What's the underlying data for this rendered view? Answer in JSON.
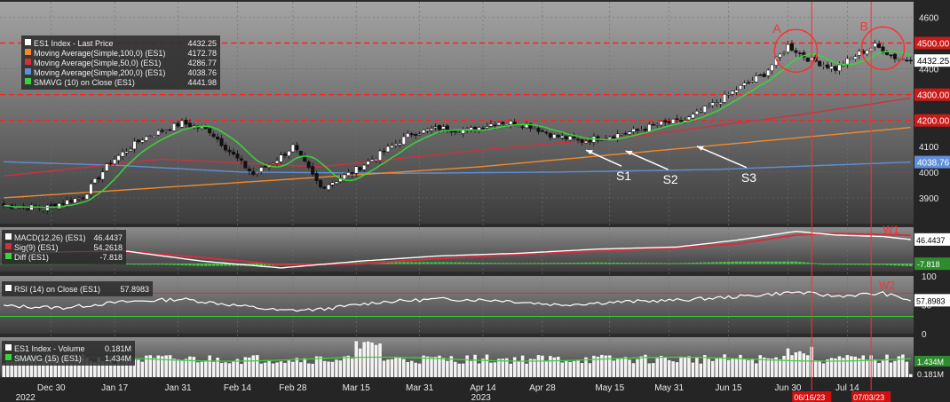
{
  "colors": {
    "panel_top": "#9a9a9a",
    "panel_bottom": "#3a3a3a",
    "bg": "#2b2b2b",
    "ma100": "#f08a2e",
    "ma50": "#d03040",
    "ma200": "#5f8fd8",
    "smavg10": "#3ad43a",
    "level": "#ff2020",
    "axis_text": "#e8e8e8",
    "price_tag": "#ffffff",
    "annot": "#ff3030"
  },
  "chart_data": [
    {
      "type": "candlestick",
      "panel": "price",
      "ylim": [
        3800,
        4660
      ],
      "yticks": [
        "4600",
        "4500",
        "4400",
        "4300",
        "4200",
        "4100",
        "4000",
        "3900"
      ],
      "legend": [
        {
          "label": "ES1 Index - Last Price",
          "value": "4432.25",
          "color": "#ffffff"
        },
        {
          "label": "Moving Average(Simple,100,0) (ES1)",
          "value": "4172.78",
          "color": "#f08a2e"
        },
        {
          "label": "Moving Average(Simple,50,0) (ES1)",
          "value": "4286.77",
          "color": "#d03040"
        },
        {
          "label": "Moving Average(Simple,200,0) (ES1)",
          "value": "4038.76",
          "color": "#5f8fd8"
        },
        {
          "label": "SMAVG (10)  on Close (ES1)",
          "value": "4441.98",
          "color": "#3ad43a"
        }
      ],
      "right_tags": [
        {
          "value": 4500,
          "text": "4500.00",
          "style": "level"
        },
        {
          "value": 4432.25,
          "text": "4432.25",
          "style": "price"
        },
        {
          "value": 4300,
          "text": "4300.00",
          "style": "level"
        },
        {
          "value": 4200,
          "text": "4200.00",
          "style": "level"
        },
        {
          "value": 4038.76,
          "text": "4038.76",
          "style": "ma200"
        }
      ],
      "levels": [
        4500,
        4300,
        4200
      ],
      "close_anchors": [
        [
          0,
          3870
        ],
        [
          10,
          3860
        ],
        [
          20,
          3905
        ],
        [
          27,
          4040
        ],
        [
          35,
          4130
        ],
        [
          45,
          4190
        ],
        [
          52,
          4160
        ],
        [
          57,
          4080
        ],
        [
          63,
          3990
        ],
        [
          70,
          4060
        ],
        [
          73,
          4100
        ],
        [
          80,
          3940
        ],
        [
          88,
          4000
        ],
        [
          95,
          4070
        ],
        [
          103,
          4150
        ],
        [
          110,
          4170
        ],
        [
          117,
          4160
        ],
        [
          125,
          4195
        ],
        [
          132,
          4185
        ],
        [
          139,
          4140
        ],
        [
          146,
          4120
        ],
        [
          153,
          4140
        ],
        [
          160,
          4160
        ],
        [
          165,
          4185
        ],
        [
          172,
          4200
        ],
        [
          180,
          4270
        ],
        [
          186,
          4330
        ],
        [
          192,
          4380
        ],
        [
          198,
          4490
        ],
        [
          203,
          4440
        ],
        [
          210,
          4400
        ],
        [
          216,
          4460
        ],
        [
          220,
          4490
        ],
        [
          225,
          4445
        ],
        [
          229,
          4432.25
        ]
      ],
      "ma100": [
        [
          0,
          3900
        ],
        [
          60,
          3960
        ],
        [
          120,
          4020
        ],
        [
          170,
          4090
        ],
        [
          229,
          4172.78
        ]
      ],
      "ma50": [
        [
          0,
          3985
        ],
        [
          40,
          4050
        ],
        [
          80,
          4020
        ],
        [
          120,
          4085
        ],
        [
          160,
          4140
        ],
        [
          200,
          4220
        ],
        [
          229,
          4286.77
        ]
      ],
      "ma200": [
        [
          0,
          4040
        ],
        [
          30,
          4025
        ],
        [
          60,
          4000
        ],
        [
          100,
          3995
        ],
        [
          140,
          4000
        ],
        [
          180,
          4010
        ],
        [
          229,
          4038.76
        ]
      ],
      "annotations": {
        "circles": [
          {
            "label": "A",
            "x": 200,
            "y": 4470
          },
          {
            "label": "B",
            "x": 222,
            "y": 4480
          }
        ],
        "arrows": [
          {
            "label": "S1",
            "x": 147,
            "y": 4085
          },
          {
            "label": "S2",
            "x": 157,
            "y": 4082
          },
          {
            "label": "S3",
            "x": 175,
            "y": 4100
          }
        ],
        "vertical_dates": [
          {
            "x": 204,
            "text": "06/16/23"
          },
          {
            "x": 219,
            "text": "07/03/23"
          }
        ]
      }
    },
    {
      "type": "line",
      "panel": "macd",
      "ylim": [
        -15,
        70
      ],
      "legend": [
        {
          "label": "MACD(12,26) (ES1)",
          "value": "46.4437",
          "color": "#ffffff"
        },
        {
          "label": "Sig(9) (ES1)",
          "value": "54.2618",
          "color": "#d03040"
        },
        {
          "label": "Diff (ES1)",
          "value": "-7.818",
          "color": "#3ad43a"
        }
      ],
      "right_tags": [
        {
          "text": "46.4437"
        },
        {
          "text": "-7.818"
        }
      ],
      "annotation": "W1",
      "macd": [
        [
          0,
          20
        ],
        [
          30,
          25
        ],
        [
          50,
          5
        ],
        [
          70,
          -8
        ],
        [
          90,
          5
        ],
        [
          110,
          15
        ],
        [
          130,
          20
        ],
        [
          150,
          28
        ],
        [
          170,
          32
        ],
        [
          185,
          45
        ],
        [
          200,
          62
        ],
        [
          210,
          55
        ],
        [
          222,
          52
        ],
        [
          229,
          46.44
        ]
      ],
      "signal": [
        [
          0,
          22
        ],
        [
          30,
          24
        ],
        [
          50,
          12
        ],
        [
          70,
          -2
        ],
        [
          90,
          0
        ],
        [
          110,
          10
        ],
        [
          130,
          18
        ],
        [
          150,
          24
        ],
        [
          170,
          30
        ],
        [
          185,
          38
        ],
        [
          200,
          55
        ],
        [
          210,
          58
        ],
        [
          222,
          56
        ],
        [
          229,
          54.26
        ]
      ]
    },
    {
      "type": "line",
      "panel": "rsi",
      "ylim": [
        0,
        100
      ],
      "yticks": [
        "100",
        "50",
        "0"
      ],
      "levels": [
        70,
        30
      ],
      "legend": [
        {
          "label": "RSI (14)  on Close (ES1)",
          "value": "57.8983",
          "color": "#ffffff"
        }
      ],
      "right_tags": [
        {
          "text": "57.8983"
        }
      ],
      "annotation": "W2",
      "rsi": [
        [
          0,
          48
        ],
        [
          15,
          45
        ],
        [
          30,
          55
        ],
        [
          45,
          60
        ],
        [
          55,
          52
        ],
        [
          70,
          40
        ],
        [
          80,
          42
        ],
        [
          95,
          55
        ],
        [
          110,
          60
        ],
        [
          125,
          58
        ],
        [
          140,
          50
        ],
        [
          155,
          55
        ],
        [
          170,
          58
        ],
        [
          185,
          64
        ],
        [
          200,
          72
        ],
        [
          210,
          65
        ],
        [
          222,
          70
        ],
        [
          229,
          57.9
        ]
      ]
    },
    {
      "type": "bar",
      "panel": "volume",
      "legend": [
        {
          "label": "ES1 Index - Volume",
          "value": "0.181M",
          "color": "#ffffff"
        },
        {
          "label": "SMAVG (15) (ES1)",
          "value": "1.434M",
          "color": "#3ad43a"
        }
      ],
      "right_tags": [
        {
          "text": "1.434M"
        },
        {
          "text": "0.181M"
        }
      ],
      "x_dates": [
        {
          "i": 12,
          "text": "Dec 30"
        },
        {
          "i": 28,
          "text": "Jan 17"
        },
        {
          "i": 44,
          "text": "Jan 31"
        },
        {
          "i": 59,
          "text": "Feb 14"
        },
        {
          "i": 73,
          "text": "Feb 28"
        },
        {
          "i": 89,
          "text": "Mar 15"
        },
        {
          "i": 105,
          "text": "Mar 31"
        },
        {
          "i": 121,
          "text": "Apr 14"
        },
        {
          "i": 136,
          "text": "Apr 28"
        },
        {
          "i": 153,
          "text": "May 15"
        },
        {
          "i": 168,
          "text": "May 31"
        },
        {
          "i": 183,
          "text": "Jun 15"
        },
        {
          "i": 198,
          "text": "Jun 30"
        },
        {
          "i": 213,
          "text": "Jul 14"
        }
      ],
      "year_labels": [
        {
          "i": 3,
          "text": "2022"
        },
        {
          "i": 118,
          "text": "2023"
        }
      ]
    }
  ]
}
